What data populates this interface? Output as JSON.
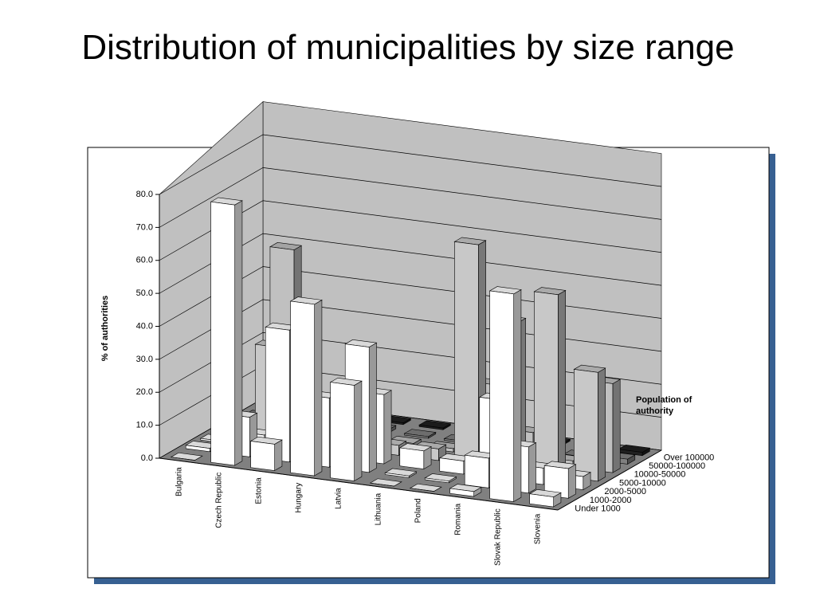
{
  "chart_data": {
    "type": "bar3d",
    "title": "Distribution of municipalities by size range",
    "y_label": "% of authorities",
    "legend_title": "Population of authority",
    "categories": [
      "Bulgaria",
      "Czech Republic",
      "Estonia",
      "Hungary",
      "Latvia",
      "Lithuania",
      "Poland",
      "Romania",
      "Slovak Republic",
      "Slovenia"
    ],
    "series": [
      {
        "name": "Under 1000",
        "color": "#ffffff",
        "values": [
          0.0,
          79.0,
          8.0,
          52.0,
          29.0,
          0.0,
          0.0,
          1.5,
          63.0,
          3.0
        ]
      },
      {
        "name": "1000-2000",
        "color": "#ffffff",
        "values": [
          1.0,
          12.0,
          40.0,
          21.0,
          38.0,
          0.5,
          0.5,
          9.0,
          14.0,
          9.0
        ]
      },
      {
        "name": "2000-5000",
        "color": "#ffffff",
        "values": [
          0.5,
          4.0,
          6.0,
          17.0,
          21.0,
          5.5,
          4.0,
          24.0,
          5.0,
          4.0
        ]
      },
      {
        "name": "5000-10000",
        "color": "#c8c8c8",
        "values": [
          0.0,
          28.0,
          3.0,
          4.0,
          3.0,
          3.5,
          67.0,
          45.0,
          55.0,
          33.0
        ]
      },
      {
        "name": "10000-50000",
        "color": "#c0c0c0",
        "values": [
          0.0,
          55.0,
          2.0,
          2.5,
          1.0,
          1.0,
          22.0,
          9.0,
          2.0,
          27.0
        ]
      },
      {
        "name": "50000-100000",
        "color": "#808080",
        "values": [
          0.0,
          1.5,
          1.0,
          1.0,
          0.5,
          0.5,
          1.0,
          1.0,
          0.5,
          1.5
        ]
      },
      {
        "name": "Over 100000",
        "color": "#202020",
        "values": [
          0.0,
          1.0,
          0.5,
          0.5,
          0.5,
          0.5,
          0.5,
          0.5,
          0.5,
          1.0
        ]
      }
    ],
    "ylim": [
      0,
      80
    ],
    "yticks": [
      {
        "value": 0,
        "label": "0.0"
      },
      {
        "value": 10,
        "label": "10.0"
      },
      {
        "value": 20,
        "label": "20.0"
      },
      {
        "value": 30,
        "label": "30.0"
      },
      {
        "value": 40,
        "label": "40.0"
      },
      {
        "value": 50,
        "label": "50.0"
      },
      {
        "value": 60,
        "label": "60.0"
      },
      {
        "value": 70,
        "label": "70.0"
      },
      {
        "value": 80,
        "label": "80.0"
      }
    ],
    "grid": true
  }
}
